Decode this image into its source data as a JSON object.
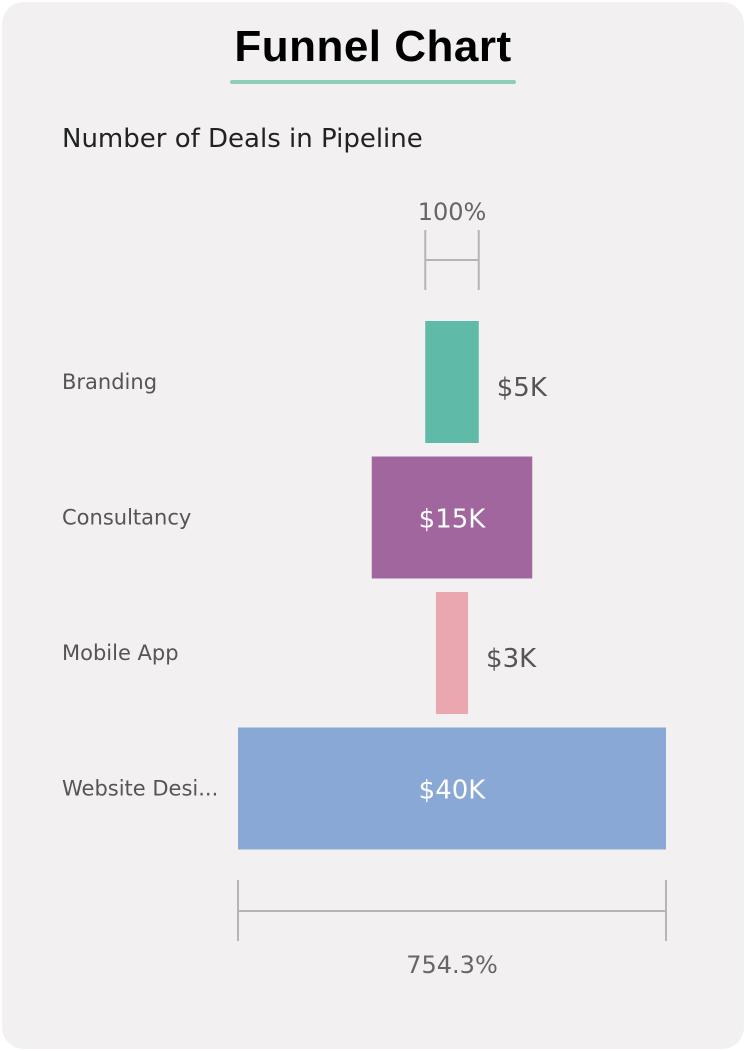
{
  "header": {
    "title": "Funnel Chart"
  },
  "chart_data": {
    "type": "funnel",
    "title": "Number of Deals in Pipeline",
    "categories": [
      "Branding",
      "Consultancy",
      "Mobile App",
      "Website Desi..."
    ],
    "values": [
      5,
      15,
      3,
      40
    ],
    "value_labels": [
      "$5K",
      "$15K",
      "$3K",
      "$40K"
    ],
    "colors": [
      "#5fbaa7",
      "#a2669f",
      "#eba7b0",
      "#89a8d6"
    ],
    "top_percent_label": "100%",
    "bottom_percent_label": "754.3%"
  }
}
